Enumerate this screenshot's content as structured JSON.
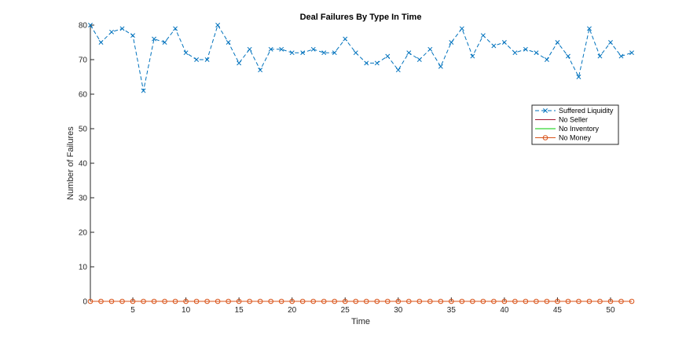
{
  "chart_data": {
    "type": "line",
    "title": "Deal Failures By Type In Time",
    "xlabel": "Time",
    "ylabel": "Number of Failures",
    "xlim": [
      1,
      52
    ],
    "ylim": [
      0,
      80
    ],
    "xticks": [
      5,
      10,
      15,
      20,
      25,
      30,
      35,
      40,
      45,
      50
    ],
    "yticks": [
      0,
      10,
      20,
      30,
      40,
      50,
      60,
      70,
      80
    ],
    "grid": false,
    "legend_position": "right",
    "x": [
      1,
      2,
      3,
      4,
      5,
      6,
      7,
      8,
      9,
      10,
      11,
      12,
      13,
      14,
      15,
      16,
      17,
      18,
      19,
      20,
      21,
      22,
      23,
      24,
      25,
      26,
      27,
      28,
      29,
      30,
      31,
      32,
      33,
      34,
      35,
      36,
      37,
      38,
      39,
      40,
      41,
      42,
      43,
      44,
      45,
      46,
      47,
      48,
      49,
      50,
      51,
      52
    ],
    "series": [
      {
        "name": "Suffered Liquidity",
        "color": "#0072BD",
        "line_style": "dashed",
        "marker": "x",
        "values": [
          80,
          75,
          78,
          79,
          77,
          61,
          76,
          75,
          79,
          72,
          70,
          70,
          80,
          75,
          69,
          73,
          67,
          73,
          73,
          72,
          72,
          73,
          72,
          72,
          76,
          72,
          69,
          69,
          71,
          67,
          72,
          70,
          73,
          68,
          75,
          79,
          71,
          77,
          74,
          75,
          72,
          73,
          72,
          70,
          75,
          71,
          65,
          79,
          71,
          75,
          71,
          72
        ]
      },
      {
        "name": "No Seller",
        "color": "#A2142F",
        "line_style": "solid",
        "marker": "none",
        "values": [
          0,
          0,
          0,
          0,
          0,
          0,
          0,
          0,
          0,
          0,
          0,
          0,
          0,
          0,
          0,
          0,
          0,
          0,
          0,
          0,
          0,
          0,
          0,
          0,
          0,
          0,
          0,
          0,
          0,
          0,
          0,
          0,
          0,
          0,
          0,
          0,
          0,
          0,
          0,
          0,
          0,
          0,
          0,
          0,
          0,
          0,
          0,
          0,
          0,
          0,
          0,
          0
        ]
      },
      {
        "name": "No Inventory",
        "color": "#00CC00",
        "line_style": "solid",
        "marker": "none",
        "values": [
          0,
          0,
          0,
          0,
          0,
          0,
          0,
          0,
          0,
          0,
          0,
          0,
          0,
          0,
          0,
          0,
          0,
          0,
          0,
          0,
          0,
          0,
          0,
          0,
          0,
          0,
          0,
          0,
          0,
          0,
          0,
          0,
          0,
          0,
          0,
          0,
          0,
          0,
          0,
          0,
          0,
          0,
          0,
          0,
          0,
          0,
          0,
          0,
          0,
          0,
          0,
          0
        ]
      },
      {
        "name": "No Money",
        "color": "#D95319",
        "line_style": "solid",
        "marker": "o",
        "values": [
          0,
          0,
          0,
          0,
          0,
          0,
          0,
          0,
          0,
          0,
          0,
          0,
          0,
          0,
          0,
          0,
          0,
          0,
          0,
          0,
          0,
          0,
          0,
          0,
          0,
          0,
          0,
          0,
          0,
          0,
          0,
          0,
          0,
          0,
          0,
          0,
          0,
          0,
          0,
          0,
          0,
          0,
          0,
          0,
          0,
          0,
          0,
          0,
          0,
          0,
          0,
          0
        ]
      }
    ]
  }
}
